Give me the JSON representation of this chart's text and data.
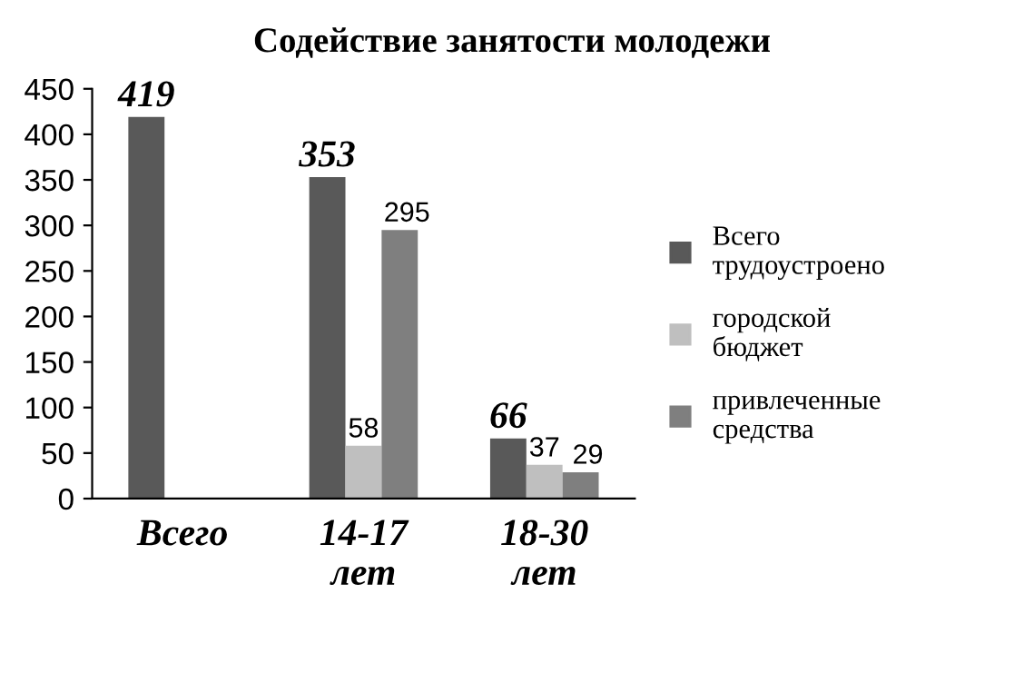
{
  "chart_data": {
    "type": "bar",
    "title": "Содействие занятости молодежи",
    "categories": [
      "Всего",
      "14-17 лет",
      "18-30 лет"
    ],
    "series": [
      {
        "name": "Всего трудоустроено",
        "color": "#595959",
        "values": [
          419,
          353,
          66
        ]
      },
      {
        "name": "городской бюджет",
        "color": "#bfbfbf",
        "values": [
          null,
          58,
          37
        ]
      },
      {
        "name": "привлеченные средства",
        "color": "#7f7f7f",
        "values": [
          null,
          295,
          29
        ]
      }
    ],
    "ylim": [
      0,
      450
    ],
    "yticks": [
      0,
      50,
      100,
      150,
      200,
      250,
      300,
      350,
      400,
      450
    ],
    "grid": false,
    "legend": "right",
    "data_labels": true
  }
}
